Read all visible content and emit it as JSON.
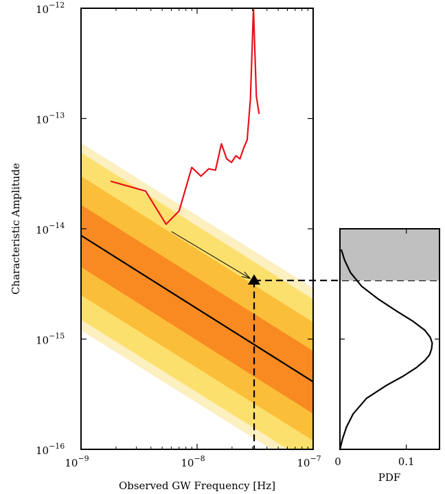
{
  "chart_data": [
    {
      "type": "line",
      "xlabel": "Observed GW Frequency [Hz]",
      "ylabel": "Characteristic Amplitude",
      "x_scale": "log",
      "y_scale": "log",
      "xlim": [
        1e-09,
        1e-07
      ],
      "ylim": [
        1e-16,
        1e-12
      ],
      "x_ticks": [
        {
          "base": "10",
          "exp": "−9",
          "value": 1e-09
        },
        {
          "base": "10",
          "exp": "−8",
          "value": 1e-08
        },
        {
          "base": "10",
          "exp": "−7",
          "value": 1e-07
        }
      ],
      "y_ticks": [
        {
          "base": "10",
          "exp": "−16",
          "value": 1e-16
        },
        {
          "base": "10",
          "exp": "−15",
          "value": 1e-15
        },
        {
          "base": "10",
          "exp": "−14",
          "value": 1e-14
        },
        {
          "base": "10",
          "exp": "−13",
          "value": 1e-13
        },
        {
          "base": "10",
          "exp": "−12",
          "value": 1e-12
        }
      ],
      "median": {
        "x": [
          1e-09,
          1e-07
        ],
        "y": [
          8.7e-15,
          4.1e-16
        ],
        "color": "#000000"
      },
      "bands": [
        {
          "color": "#fcefc0",
          "x": [
            1e-09,
            1e-07
          ],
          "upper": [
            6e-14,
            2.9e-15
          ],
          "lower": [
            1.2e-15,
            5.8e-17
          ]
        },
        {
          "color": "#fce06e",
          "x": [
            1e-09,
            1e-07
          ],
          "upper": [
            4.9e-14,
            2.3e-15
          ],
          "lower": [
            1.5e-15,
            7.2e-17
          ]
        },
        {
          "color": "#fbbe38",
          "x": [
            1e-09,
            1e-07
          ],
          "upper": [
            3e-14,
            1.42e-15
          ],
          "lower": [
            2.5e-15,
            1.2e-16
          ]
        },
        {
          "color": "#f98a22",
          "x": [
            1e-09,
            1e-07
          ],
          "upper": [
            1.65e-14,
            7.8e-16
          ],
          "lower": [
            4.5e-15,
            2.1e-16
          ]
        }
      ],
      "limit_curve": {
        "color": "#e8111a",
        "x": [
          1.8e-09,
          3.6e-09,
          5.4e-09,
          7e-09,
          9e-09,
          1.08e-08,
          1.26e-08,
          1.44e-08,
          1.62e-08,
          1.8e-08,
          1.98e-08,
          2.16e-08,
          2.34e-08,
          2.52e-08,
          2.7e-08,
          2.88e-08,
          3.06e-08,
          3.24e-08,
          3.42e-08
        ],
        "y": [
          2.7e-14,
          2.2e-14,
          1.1e-14,
          1.45e-14,
          3.6e-14,
          3e-14,
          3.5e-14,
          3.4e-14,
          5.9e-14,
          4.3e-14,
          4e-14,
          4.6e-14,
          4.3e-14,
          5.4e-14,
          6.4e-14,
          1.5e-13,
          1e-12,
          1.6e-13,
          1.1e-13
        ]
      },
      "arrow": {
        "from": {
          "x": 5.4e-09,
          "y": 1e-14
        },
        "to": {
          "x": 3.1e-08,
          "y": 3.4e-15
        }
      },
      "marker": {
        "x": 3.1e-08,
        "y": 3.4e-15,
        "shape": "triangle-up"
      }
    },
    {
      "type": "line",
      "xlabel": "PDF",
      "y_scale": "log",
      "ylim": [
        1e-16,
        1e-14
      ],
      "xlim": [
        0,
        0.15
      ],
      "x_ticks": [
        {
          "label": "0",
          "value": 0
        },
        {
          "label": "0.1",
          "value": 0.1
        }
      ],
      "threshold": 3.4e-15,
      "shaded_above_threshold": true,
      "shade_color": "#c0c0c0",
      "pdf_curve": {
        "y": [
          1e-16,
          1.25e-16,
          1.6e-16,
          2.1e-16,
          2.9e-16,
          3.8e-16,
          4.6e-16,
          5.5e-16,
          6.4e-16,
          7.2e-16,
          8.1e-16,
          9.2e-16,
          1.04e-15,
          1.2e-15,
          1.45e-15,
          1.8e-15,
          2.3e-15,
          3e-15,
          4e-15,
          5.2e-15,
          6.5e-15
        ],
        "pdf": [
          0.0,
          0.004,
          0.01,
          0.02,
          0.04,
          0.07,
          0.095,
          0.115,
          0.128,
          0.135,
          0.138,
          0.139,
          0.136,
          0.128,
          0.11,
          0.085,
          0.058,
          0.033,
          0.016,
          0.007,
          0.002
        ]
      }
    }
  ]
}
